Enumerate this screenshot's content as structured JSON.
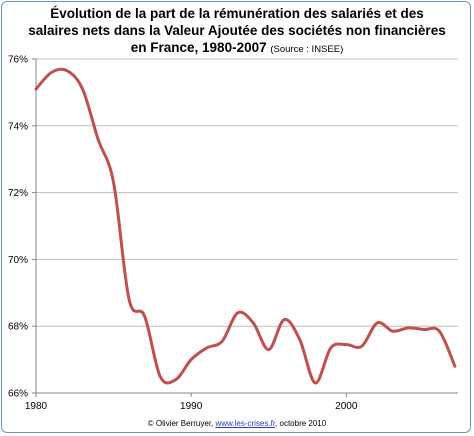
{
  "chart_data": {
    "type": "line",
    "title_line1": "Évolution de la part de la rémunération des salariés et des",
    "title_line2": "salaires nets dans la Valeur Ajoutée des sociétés non financières",
    "title_line3": "en France, 1980-2007",
    "title_source": "(Source : INSEE)",
    "xlabel": "",
    "ylabel": "",
    "xlim": [
      1980,
      2007.2
    ],
    "ylim": [
      66,
      76
    ],
    "x_ticks": [
      1980,
      1990,
      2000
    ],
    "x_tick_labels": [
      "1980",
      "1990",
      "2000"
    ],
    "y_ticks": [
      66,
      68,
      70,
      72,
      74,
      76
    ],
    "y_tick_labels": [
      "66%",
      "68%",
      "70%",
      "72%",
      "74%",
      "76%"
    ],
    "grid": "horizontal",
    "line_color": "#c0504d",
    "grid_color": "#bfbfbf",
    "series": [
      {
        "x": [
          1980,
          1981,
          1982,
          1983,
          1984,
          1985,
          1986,
          1987,
          1988,
          1989,
          1990,
          1991,
          1992,
          1993,
          1994,
          1995,
          1996,
          1997,
          1998,
          1999,
          2000,
          2001,
          2002,
          2003,
          2004,
          2005,
          2006,
          2007
        ],
        "values": [
          75.1,
          75.6,
          75.65,
          75.1,
          73.6,
          72.3,
          68.8,
          68.3,
          66.5,
          66.4,
          67.0,
          67.35,
          67.55,
          68.4,
          68.1,
          67.3,
          68.2,
          67.6,
          66.3,
          67.35,
          67.45,
          67.4,
          68.1,
          67.85,
          67.95,
          67.9,
          67.85,
          66.8
        ]
      }
    ]
  },
  "credit": {
    "prefix": "© Olivier Berruyer, ",
    "link": "www.les-crises.fr",
    "suffix": ", octobre 2010"
  }
}
